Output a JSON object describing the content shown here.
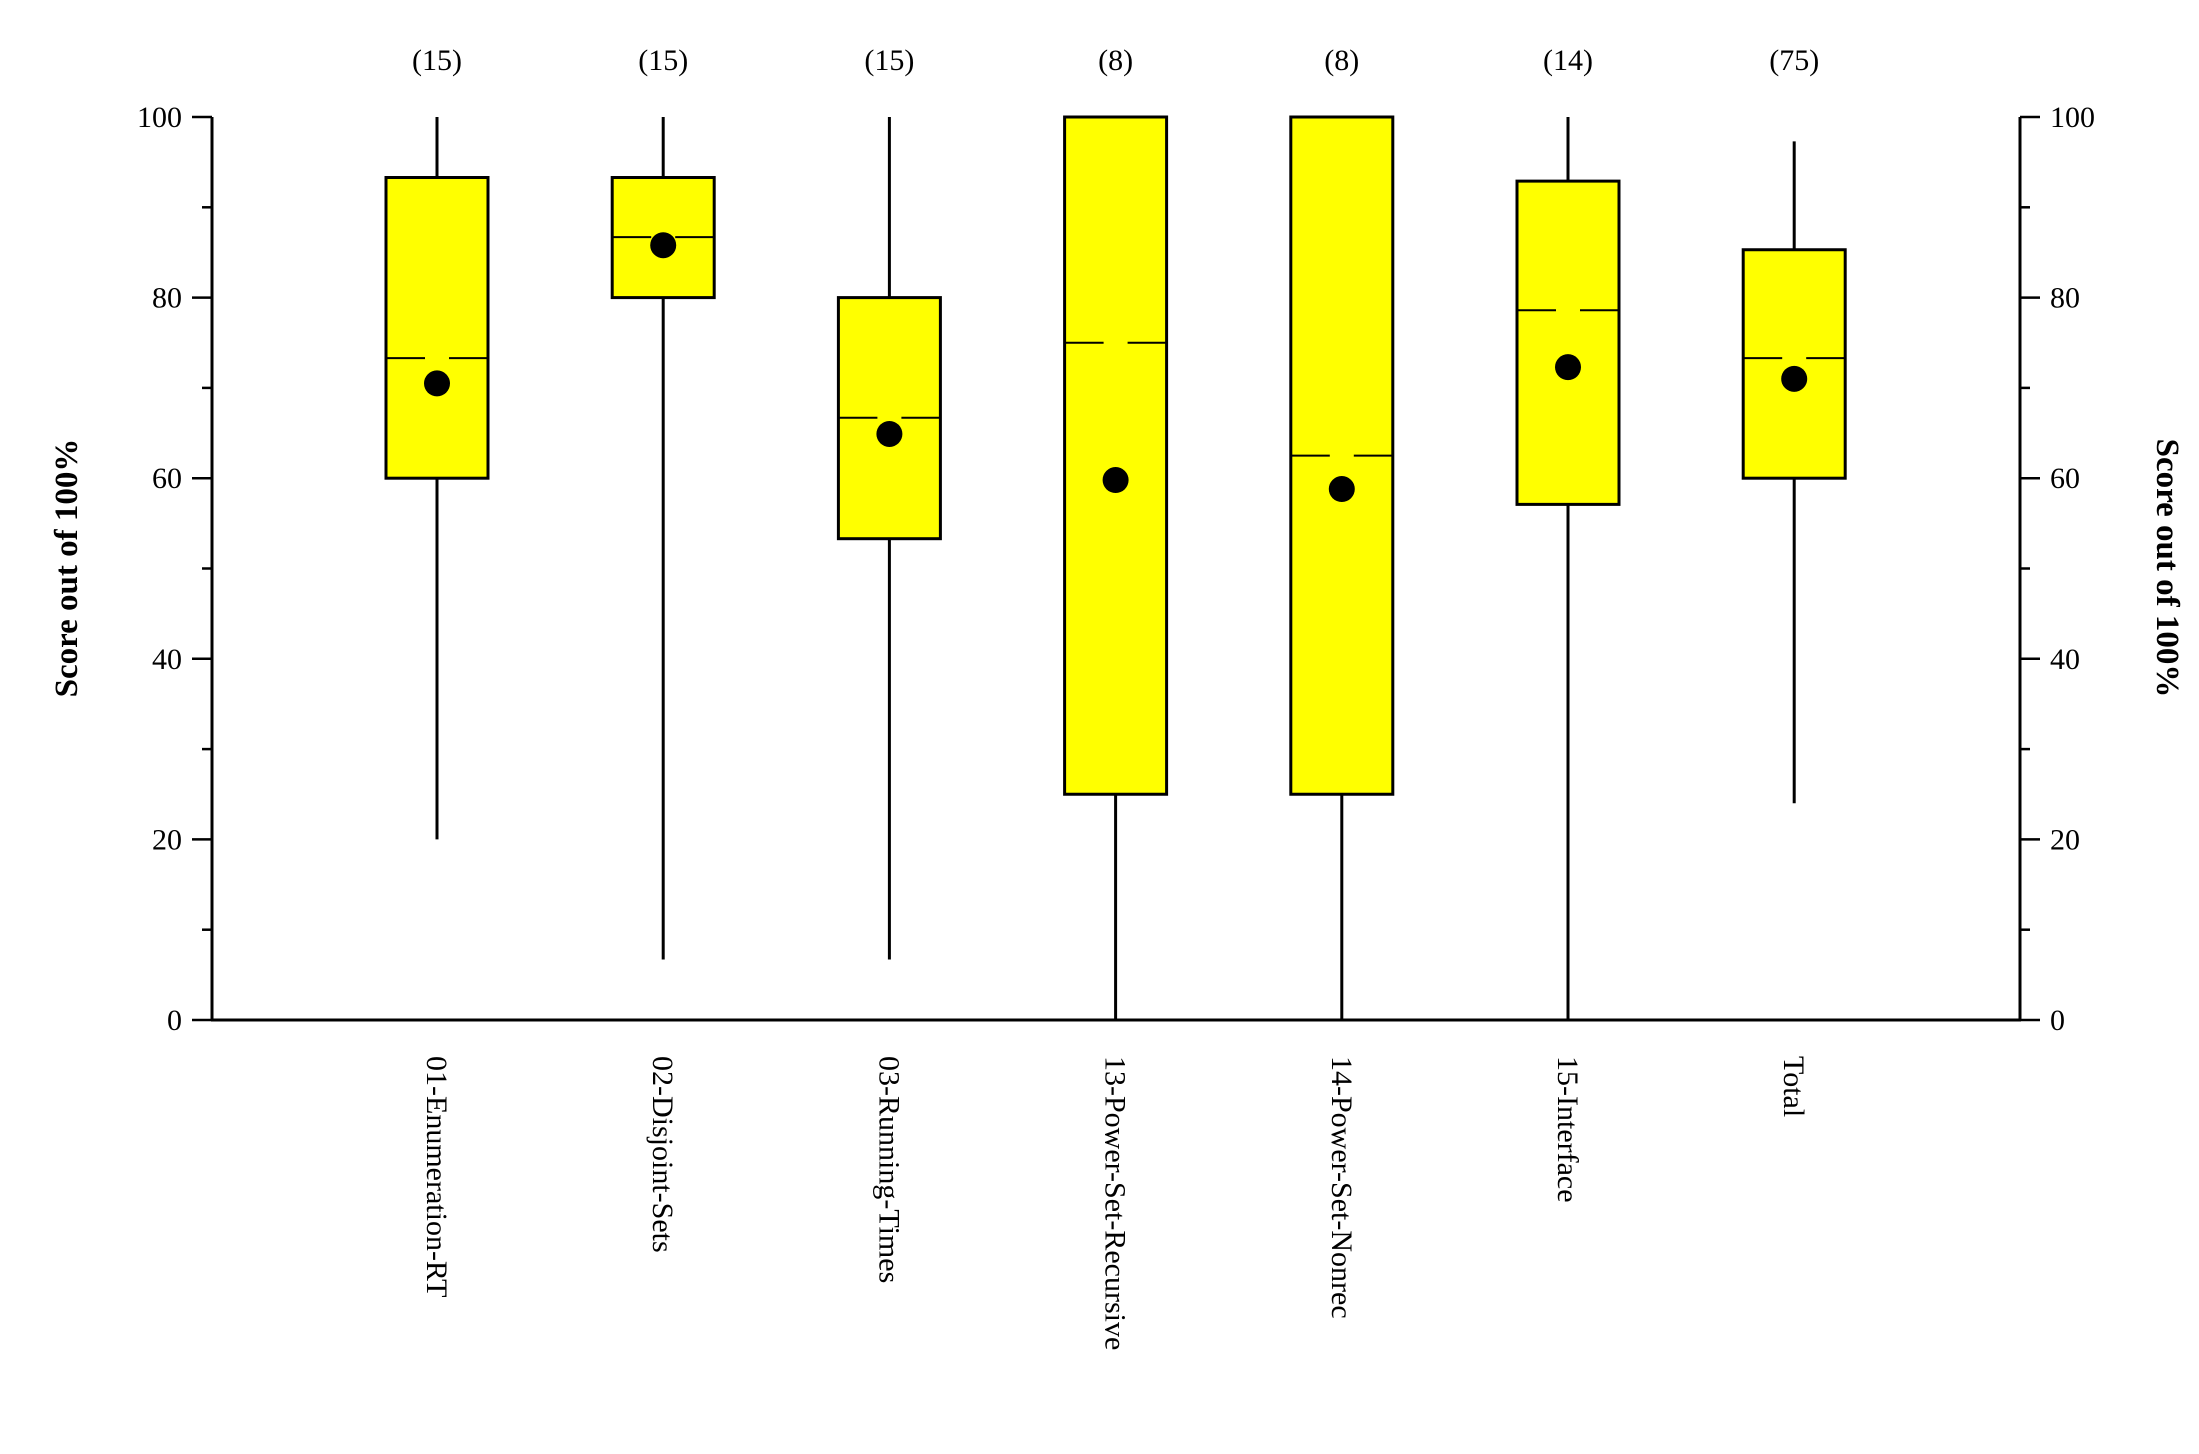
{
  "chart_data": {
    "type": "box",
    "title": "",
    "xlabel": "",
    "ylabel": "Score out of 100%",
    "ylabel_right": "Score out of 100%",
    "ylim": [
      0,
      100
    ],
    "y_ticks": [
      0,
      20,
      40,
      60,
      80,
      100
    ],
    "y_minor_step": 10,
    "grid": false,
    "colors": {
      "box_fill": "#ffff00",
      "stroke": "#000000",
      "mean_marker": "#000000"
    },
    "categories": [
      "01-Enumeration-RT",
      "02-Disjoint-Sets",
      "03-Running-Times",
      "13-Power-Set-Recursive",
      "14-Power-Set-Nonrec",
      "15-Interface",
      "Total"
    ],
    "counts": [
      "(15)",
      "(15)",
      "(15)",
      "(8)",
      "(8)",
      "(14)",
      "(75)"
    ],
    "boxes": [
      {
        "whisker_low": 20,
        "q1": 60,
        "median": 73.3,
        "q3": 93.3,
        "whisker_high": 100,
        "mean": 70.5
      },
      {
        "whisker_low": 6.7,
        "q1": 80,
        "median": 86.7,
        "q3": 93.3,
        "whisker_high": 100,
        "mean": 85.8
      },
      {
        "whisker_low": 6.7,
        "q1": 53.3,
        "median": 66.7,
        "q3": 80,
        "whisker_high": 100,
        "mean": 64.9
      },
      {
        "whisker_low": 0,
        "q1": 25,
        "median": 75,
        "q3": 100,
        "whisker_high": 100,
        "mean": 59.8
      },
      {
        "whisker_low": 0,
        "q1": 25,
        "median": 62.5,
        "q3": 100,
        "whisker_high": 100,
        "mean": 58.8
      },
      {
        "whisker_low": 0,
        "q1": 57.1,
        "median": 78.6,
        "q3": 92.9,
        "whisker_high": 100,
        "mean": 72.3
      },
      {
        "whisker_low": 24,
        "q1": 60,
        "median": 73.3,
        "q3": 85.3,
        "whisker_high": 97.3,
        "mean": 71
      }
    ]
  }
}
